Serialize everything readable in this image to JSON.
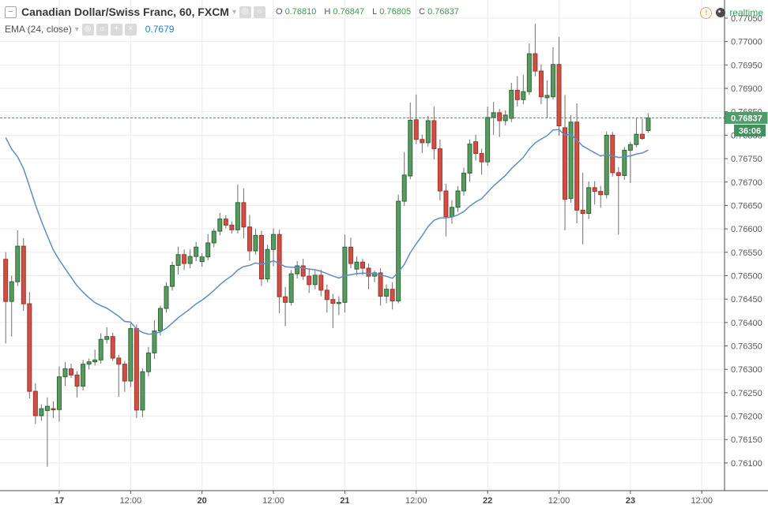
{
  "header": {
    "symbol_title": "Canadian Dollar/Swiss Franc, 60, FXCM",
    "ohlc": {
      "o_label": "O",
      "o_value": "0.76810",
      "h_label": "H",
      "h_value": "0.76847",
      "l_label": "L",
      "l_value": "0.76805",
      "c_label": "C",
      "c_value": "0.76837"
    },
    "indicator": {
      "name": "EMA (24, close)",
      "value": "0.7679"
    },
    "realtime_label": "realtime"
  },
  "icons": {
    "collapse": "−",
    "dropdown": "▾",
    "eye": "◎",
    "gear": "☼",
    "plus": "+",
    "close": "×",
    "warning": "!"
  },
  "price_axis": {
    "labels": [
      "0.77050",
      "0.77000",
      "0.76950",
      "0.76900",
      "0.76850",
      "0.76800",
      "0.76750",
      "0.76700",
      "0.76650",
      "0.76600",
      "0.76550",
      "0.76500",
      "0.76450",
      "0.76400",
      "0.76350",
      "0.76300",
      "0.76250",
      "0.76200",
      "0.76150",
      "0.76100"
    ],
    "last_price_badge": "0.76837",
    "countdown_badge": "36:06"
  },
  "time_axis": {
    "ticks": [
      {
        "label": "17",
        "index": 9,
        "bold": true
      },
      {
        "label": "12:00",
        "index": 21,
        "bold": false
      },
      {
        "label": "20",
        "index": 33,
        "bold": true
      },
      {
        "label": "12:00",
        "index": 45,
        "bold": false
      },
      {
        "label": "21",
        "index": 57,
        "bold": true
      },
      {
        "label": "12:00",
        "index": 69,
        "bold": false
      },
      {
        "label": "22",
        "index": 81,
        "bold": true
      },
      {
        "label": "12:00",
        "index": 93,
        "bold": false
      },
      {
        "label": "23",
        "index": 105,
        "bold": true
      },
      {
        "label": "12:00",
        "index": 117,
        "bold": false
      }
    ]
  },
  "colors": {
    "up_fill": "#5a9a62",
    "up_stroke": "#2a6a33",
    "down_fill": "#cd5046",
    "down_stroke": "#a3322b",
    "wick": "#6e6e70",
    "ema_line": "#5e8cc7",
    "grid": "#ebebee",
    "axis_line": "#4d4d4d",
    "axis_text": "#58585a",
    "axis_text_bold": "#3f3f3f",
    "last_price_line": "#3c9668",
    "price_badge_bg": "#4f9d6a",
    "countdown_badge_bg": "#41905f",
    "badge_text": "#ffffff"
  },
  "chart_data": {
    "type": "candlestick",
    "title": "Canadian Dollar/Swiss Franc, 60, FXCM",
    "symbol": "CAD/CHF",
    "timeframe_minutes": 60,
    "exchange": "FXCM",
    "ylim": [
      0.761,
      0.7705
    ],
    "price_step": 0.0005,
    "last_price": 0.76837,
    "current_ohlc": {
      "open": 0.7681,
      "high": 0.76847,
      "low": 0.76805,
      "close": 0.76837
    },
    "indicator": {
      "type": "EMA",
      "length": 24,
      "source": "close",
      "display_value": 0.7679,
      "seed": 0.76795
    },
    "x_tick_labels": [
      "17",
      "12:00",
      "20",
      "12:00",
      "21",
      "12:00",
      "22",
      "12:00",
      "23",
      "12:00"
    ],
    "candles": [
      [
        0.76535,
        0.7655,
        0.76355,
        0.76445
      ],
      [
        0.76445,
        0.765,
        0.7637,
        0.76487
      ],
      [
        0.76487,
        0.76597,
        0.76478,
        0.76563
      ],
      [
        0.76563,
        0.7658,
        0.76425,
        0.7644
      ],
      [
        0.7644,
        0.76465,
        0.76238,
        0.76253
      ],
      [
        0.76253,
        0.7627,
        0.76183,
        0.76201
      ],
      [
        0.76201,
        0.76225,
        0.7619,
        0.76216
      ],
      [
        0.76212,
        0.7624,
        0.76092,
        0.76221
      ],
      [
        0.76216,
        0.76232,
        0.76196,
        0.76214
      ],
      [
        0.76214,
        0.76306,
        0.76188,
        0.76284
      ],
      [
        0.76284,
        0.76315,
        0.76265,
        0.76301
      ],
      [
        0.76301,
        0.76312,
        0.76282,
        0.76288
      ],
      [
        0.76288,
        0.76296,
        0.7624,
        0.76264
      ],
      [
        0.76264,
        0.7632,
        0.76255,
        0.76311
      ],
      [
        0.76311,
        0.76323,
        0.763,
        0.76316
      ],
      [
        0.76316,
        0.76342,
        0.76308,
        0.7632
      ],
      [
        0.7632,
        0.76377,
        0.76312,
        0.76364
      ],
      [
        0.76364,
        0.7639,
        0.76355,
        0.7637
      ],
      [
        0.7637,
        0.76378,
        0.76318,
        0.76324
      ],
      [
        0.76324,
        0.76331,
        0.76241,
        0.76311
      ],
      [
        0.76311,
        0.76318,
        0.76252,
        0.76275
      ],
      [
        0.76275,
        0.76398,
        0.76262,
        0.76387
      ],
      [
        0.76387,
        0.76396,
        0.76196,
        0.76213
      ],
      [
        0.76213,
        0.76302,
        0.76198,
        0.76295
      ],
      [
        0.76295,
        0.76348,
        0.76285,
        0.76335
      ],
      [
        0.76335,
        0.76405,
        0.76322,
        0.76382
      ],
      [
        0.76382,
        0.76436,
        0.76372,
        0.7643
      ],
      [
        0.7643,
        0.76486,
        0.76421,
        0.76477
      ],
      [
        0.76477,
        0.7653,
        0.76468,
        0.76522
      ],
      [
        0.76522,
        0.76562,
        0.76502,
        0.76545
      ],
      [
        0.76545,
        0.76556,
        0.76512,
        0.76526
      ],
      [
        0.76526,
        0.76556,
        0.76516,
        0.76541
      ],
      [
        0.76541,
        0.76572,
        0.76531,
        0.76561
      ],
      [
        0.7653,
        0.76548,
        0.76519,
        0.7654
      ],
      [
        0.7654,
        0.76589,
        0.76533,
        0.7657
      ],
      [
        0.7657,
        0.76601,
        0.76561,
        0.76595
      ],
      [
        0.76595,
        0.76634,
        0.76586,
        0.76621
      ],
      [
        0.76621,
        0.76629,
        0.76601,
        0.76608
      ],
      [
        0.76608,
        0.76616,
        0.7659,
        0.76598
      ],
      [
        0.76598,
        0.76695,
        0.7659,
        0.76656
      ],
      [
        0.76656,
        0.76686,
        0.7658,
        0.76604
      ],
      [
        0.76604,
        0.7663,
        0.76532,
        0.76553
      ],
      [
        0.76553,
        0.766,
        0.76545,
        0.76586
      ],
      [
        0.76586,
        0.76596,
        0.76478,
        0.76493
      ],
      [
        0.76493,
        0.76566,
        0.76486,
        0.76556
      ],
      [
        0.76556,
        0.76601,
        0.7652,
        0.76588
      ],
      [
        0.76588,
        0.76598,
        0.7642,
        0.76455
      ],
      [
        0.76455,
        0.76476,
        0.76392,
        0.76443
      ],
      [
        0.76443,
        0.76512,
        0.76436,
        0.76504
      ],
      [
        0.76504,
        0.76531,
        0.76494,
        0.76521
      ],
      [
        0.76521,
        0.76536,
        0.76491,
        0.76499
      ],
      [
        0.76499,
        0.76516,
        0.76463,
        0.76481
      ],
      [
        0.76481,
        0.76511,
        0.76471,
        0.76501
      ],
      [
        0.76501,
        0.76513,
        0.76456,
        0.76469
      ],
      [
        0.76469,
        0.76481,
        0.76421,
        0.76449
      ],
      [
        0.76449,
        0.76461,
        0.76388,
        0.76441
      ],
      [
        0.76441,
        0.76456,
        0.76416,
        0.76443
      ],
      [
        0.76443,
        0.76588,
        0.76421,
        0.76561
      ],
      [
        0.76561,
        0.76581,
        0.76516,
        0.76526
      ],
      [
        0.76514,
        0.76541,
        0.76501,
        0.76529
      ],
      [
        0.76529,
        0.76536,
        0.76501,
        0.76516
      ],
      [
        0.76516,
        0.76526,
        0.76471,
        0.76499
      ],
      [
        0.76499,
        0.76511,
        0.76486,
        0.76506
      ],
      [
        0.76506,
        0.76516,
        0.76436,
        0.76456
      ],
      [
        0.76456,
        0.76481,
        0.76441,
        0.76471
      ],
      [
        0.76471,
        0.76486,
        0.76428,
        0.76446
      ],
      [
        0.76446,
        0.76673,
        0.76441,
        0.76659
      ],
      [
        0.76659,
        0.76764,
        0.76649,
        0.76715
      ],
      [
        0.76713,
        0.7687,
        0.76706,
        0.76832
      ],
      [
        0.76833,
        0.76887,
        0.76781,
        0.76791
      ],
      [
        0.76791,
        0.76801,
        0.76762,
        0.76784
      ],
      [
        0.76784,
        0.76841,
        0.76776,
        0.76831
      ],
      [
        0.76831,
        0.76861,
        0.76748,
        0.76771
      ],
      [
        0.76771,
        0.76791,
        0.76661,
        0.76681
      ],
      [
        0.76681,
        0.76696,
        0.76584,
        0.76626
      ],
      [
        0.76626,
        0.76661,
        0.76611,
        0.76646
      ],
      [
        0.76646,
        0.76691,
        0.76636,
        0.76681
      ],
      [
        0.76681,
        0.76731,
        0.76671,
        0.76719
      ],
      [
        0.76719,
        0.76791,
        0.76701,
        0.76781
      ],
      [
        0.76786,
        0.76801,
        0.76746,
        0.76761
      ],
      [
        0.76761,
        0.76771,
        0.76716,
        0.76743
      ],
      [
        0.76743,
        0.76861,
        0.76735,
        0.76838
      ],
      [
        0.76838,
        0.76871,
        0.76801,
        0.76848
      ],
      [
        0.76848,
        0.76856,
        0.76796,
        0.76831
      ],
      [
        0.76831,
        0.76853,
        0.76821,
        0.76843
      ],
      [
        0.76836,
        0.76912,
        0.76828,
        0.76896
      ],
      [
        0.76896,
        0.76926,
        0.76861,
        0.76876
      ],
      [
        0.76876,
        0.76929,
        0.76866,
        0.76893
      ],
      [
        0.76893,
        0.76996,
        0.76886,
        0.76974
      ],
      [
        0.76974,
        0.77038,
        0.76926,
        0.76937
      ],
      [
        0.76937,
        0.76951,
        0.76866,
        0.76882
      ],
      [
        0.7688,
        0.76917,
        0.76836,
        0.76885
      ],
      [
        0.76882,
        0.76988,
        0.76876,
        0.76951
      ],
      [
        0.76951,
        0.7701,
        0.76799,
        0.7682
      ],
      [
        0.76816,
        0.76886,
        0.76597,
        0.76663
      ],
      [
        0.76665,
        0.76843,
        0.76656,
        0.76828
      ],
      [
        0.76828,
        0.76868,
        0.76612,
        0.7664
      ],
      [
        0.7664,
        0.7672,
        0.76567,
        0.76633
      ],
      [
        0.76633,
        0.76701,
        0.76621,
        0.76688
      ],
      [
        0.76688,
        0.76702,
        0.76652,
        0.7668
      ],
      [
        0.7668,
        0.76692,
        0.76645,
        0.76673
      ],
      [
        0.76673,
        0.76808,
        0.76665,
        0.768
      ],
      [
        0.768,
        0.76807,
        0.76712,
        0.7672
      ],
      [
        0.7672,
        0.76732,
        0.76588,
        0.76714
      ],
      [
        0.76714,
        0.76775,
        0.76705,
        0.76768
      ],
      [
        0.76768,
        0.76786,
        0.76698,
        0.7678
      ],
      [
        0.7678,
        0.76837,
        0.76774,
        0.76802
      ],
      [
        0.76802,
        0.76835,
        0.7679,
        0.76793
      ],
      [
        0.7681,
        0.76847,
        0.76805,
        0.76837
      ]
    ]
  }
}
